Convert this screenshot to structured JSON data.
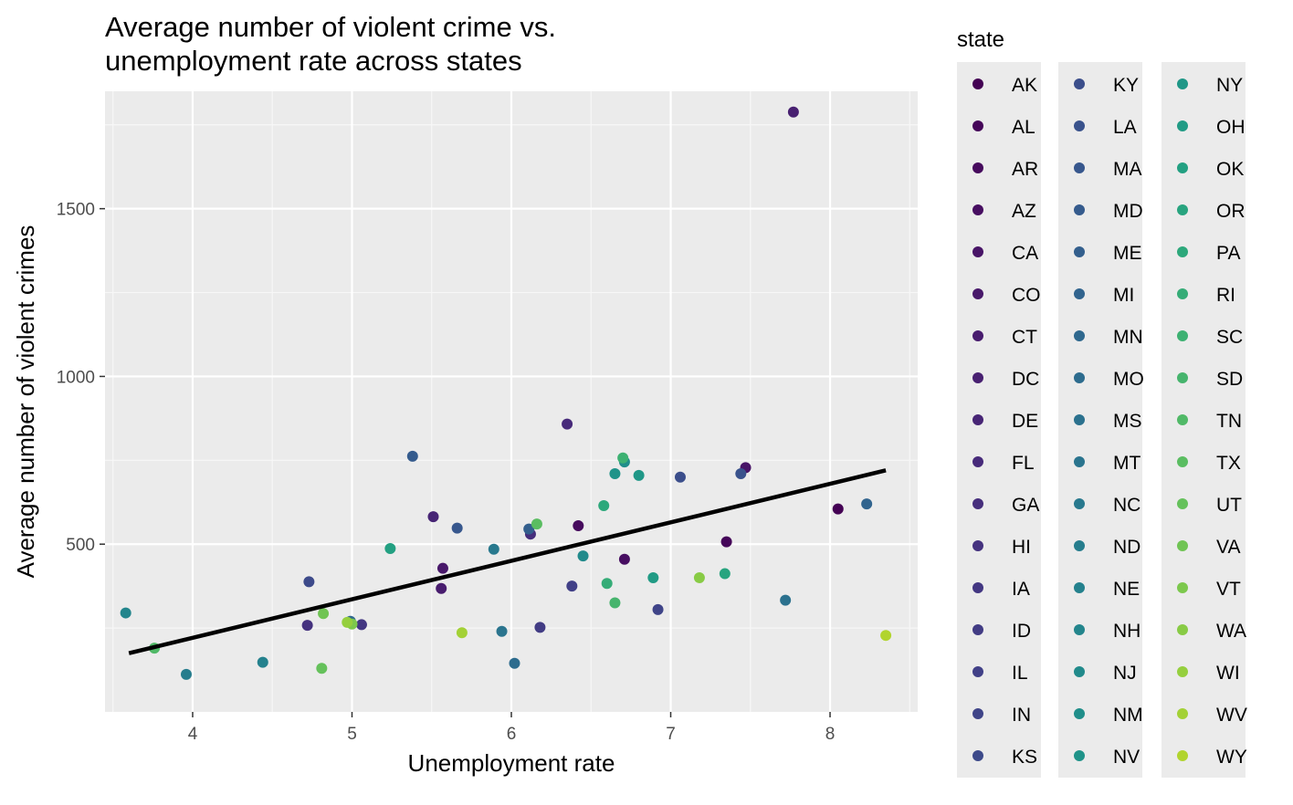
{
  "chart_data": {
    "type": "scatter",
    "title_lines": [
      "Average number of violent crime vs.",
      "unemployment rate across states"
    ],
    "xlabel": "Unemployment rate",
    "ylabel": "Average number of violent crimes",
    "xlim": [
      3.45,
      8.55
    ],
    "ylim": [
      0,
      1850
    ],
    "x_ticks": [
      4,
      5,
      6,
      7,
      8
    ],
    "y_ticks": [
      500,
      1000,
      1500
    ],
    "grid": true,
    "panel_background": "#ebebeb",
    "legend": {
      "title": "state",
      "placement": "right",
      "columns": 3
    },
    "trend_line": {
      "label": "",
      "x": [
        3.6,
        8.35
      ],
      "y": [
        175,
        720
      ],
      "color": "#000000"
    },
    "series": [
      {
        "name": "AK",
        "color": "#440154",
        "x": 8.05,
        "y": 605
      },
      {
        "name": "AL",
        "color": "#450559",
        "x": 7.35,
        "y": 507
      },
      {
        "name": "AR",
        "color": "#460a5d",
        "x": 6.42,
        "y": 555
      },
      {
        "name": "AZ",
        "color": "#470e61",
        "x": 6.71,
        "y": 455
      },
      {
        "name": "CA",
        "color": "#481467",
        "x": 7.47,
        "y": 728
      },
      {
        "name": "CO",
        "color": "#48186a",
        "x": 5.57,
        "y": 428
      },
      {
        "name": "CT",
        "color": "#481c6e",
        "x": 5.56,
        "y": 368
      },
      {
        "name": "DC",
        "color": "#482071",
        "x": 7.77,
        "y": 1788
      },
      {
        "name": "DE",
        "color": "#472575",
        "x": 5.51,
        "y": 582
      },
      {
        "name": "FL",
        "color": "#472a7a",
        "x": 6.35,
        "y": 858
      },
      {
        "name": "GA",
        "color": "#462e7c",
        "x": 6.12,
        "y": 530
      },
      {
        "name": "HI",
        "color": "#45327f",
        "x": 4.72,
        "y": 258
      },
      {
        "name": "IA",
        "color": "#433782",
        "x": 5.06,
        "y": 260
      },
      {
        "name": "ID",
        "color": "#423c84",
        "x": 6.18,
        "y": 252
      },
      {
        "name": "IL",
        "color": "#414087",
        "x": 6.38,
        "y": 375
      },
      {
        "name": "IN",
        "color": "#3f4488",
        "x": 6.92,
        "y": 305
      },
      {
        "name": "KS",
        "color": "#3d4a8a",
        "x": 4.73,
        "y": 388
      },
      {
        "name": "KY",
        "color": "#3b4e8b",
        "x": 7.06,
        "y": 700
      },
      {
        "name": "LA",
        "color": "#39528c",
        "x": 7.44,
        "y": 710
      },
      {
        "name": "MA",
        "color": "#37578d",
        "x": 5.66,
        "y": 548
      },
      {
        "name": "MD",
        "color": "#355b8d",
        "x": 5.38,
        "y": 762
      },
      {
        "name": "ME",
        "color": "#335f8d",
        "x": 6.11,
        "y": 545
      },
      {
        "name": "MI",
        "color": "#31648e",
        "x": 8.23,
        "y": 620
      },
      {
        "name": "MN",
        "color": "#2f688e",
        "x": 4.99,
        "y": 270
      },
      {
        "name": "MO",
        "color": "#2d6c8e",
        "x": 6.02,
        "y": 145
      },
      {
        "name": "MS",
        "color": "#2b718e",
        "x": 7.72,
        "y": 333
      },
      {
        "name": "MT",
        "color": "#2a748e",
        "x": 5.94,
        "y": 240
      },
      {
        "name": "NC",
        "color": "#28798e",
        "x": 5.89,
        "y": 485
      },
      {
        "name": "ND",
        "color": "#267d8d",
        "x": 3.96,
        "y": 112
      },
      {
        "name": "NE",
        "color": "#24818d",
        "x": 4.44,
        "y": 148
      },
      {
        "name": "NH",
        "color": "#23858c",
        "x": 3.58,
        "y": 295
      },
      {
        "name": "NJ",
        "color": "#218a8b",
        "x": 6.45,
        "y": 465
      },
      {
        "name": "NM",
        "color": "#208e8a",
        "x": 6.71,
        "y": 745
      },
      {
        "name": "NV",
        "color": "#1f9389",
        "x": 6.65,
        "y": 710
      },
      {
        "name": "NY",
        "color": "#1f9787",
        "x": 6.8,
        "y": 705
      },
      {
        "name": "OH",
        "color": "#219b85",
        "x": 6.89,
        "y": 400
      },
      {
        "name": "OK",
        "color": "#23a082",
        "x": 5.24,
        "y": 487
      },
      {
        "name": "OR",
        "color": "#28a47f",
        "x": 7.34,
        "y": 412
      },
      {
        "name": "PA",
        "color": "#2da87b",
        "x": 6.58,
        "y": 615
      },
      {
        "name": "RI",
        "color": "#35ac77",
        "x": 6.6,
        "y": 383
      },
      {
        "name": "SC",
        "color": "#3db172",
        "x": 6.7,
        "y": 757
      },
      {
        "name": "SD",
        "color": "#46b46d",
        "x": 6.65,
        "y": 325
      },
      {
        "name": "TN",
        "color": "#50b967",
        "x": 3.76,
        "y": 190
      },
      {
        "name": "TX",
        "color": "#5abd61",
        "x": 6.16,
        "y": 560
      },
      {
        "name": "UT",
        "color": "#65c15b",
        "x": 4.81,
        "y": 130
      },
      {
        "name": "VA",
        "color": "#70c454",
        "x": 4.82,
        "y": 293
      },
      {
        "name": "VT",
        "color": "#7cc84d",
        "x": 5.0,
        "y": 262
      },
      {
        "name": "WA",
        "color": "#88cb45",
        "x": 7.18,
        "y": 400
      },
      {
        "name": "WI",
        "color": "#95cf3e",
        "x": 4.97,
        "y": 267
      },
      {
        "name": "WV",
        "color": "#a3d136",
        "x": 5.69,
        "y": 236
      },
      {
        "name": "WY",
        "color": "#b1d42e",
        "x": 8.35,
        "y": 228
      }
    ],
    "legend_colors": [
      "#440154",
      "#450559",
      "#460a5d",
      "#470e61",
      "#481467",
      "#48186a",
      "#481c6e",
      "#482071",
      "#472575",
      "#472a7a",
      "#462e7c",
      "#45327f",
      "#433782",
      "#423c84",
      "#414087",
      "#3f4488",
      "#3d4a8a",
      "#3b4e8b",
      "#39528c",
      "#37578d",
      "#355b8d",
      "#335f8d",
      "#31648e",
      "#2f688e",
      "#2d6c8e",
      "#2b718e",
      "#2a748e",
      "#28798e",
      "#267d8d",
      "#24818d",
      "#23858c",
      "#218a8b",
      "#208e8a",
      "#1f9389",
      "#1f9787",
      "#219b85",
      "#23a082",
      "#28a47f",
      "#2da87b",
      "#35ac77",
      "#3db172",
      "#46b46d",
      "#50b967",
      "#5abd61",
      "#65c15b",
      "#70c454",
      "#7cc84d",
      "#88cb45",
      "#95cf3e",
      "#a3d136",
      "#b1d42e"
    ]
  }
}
